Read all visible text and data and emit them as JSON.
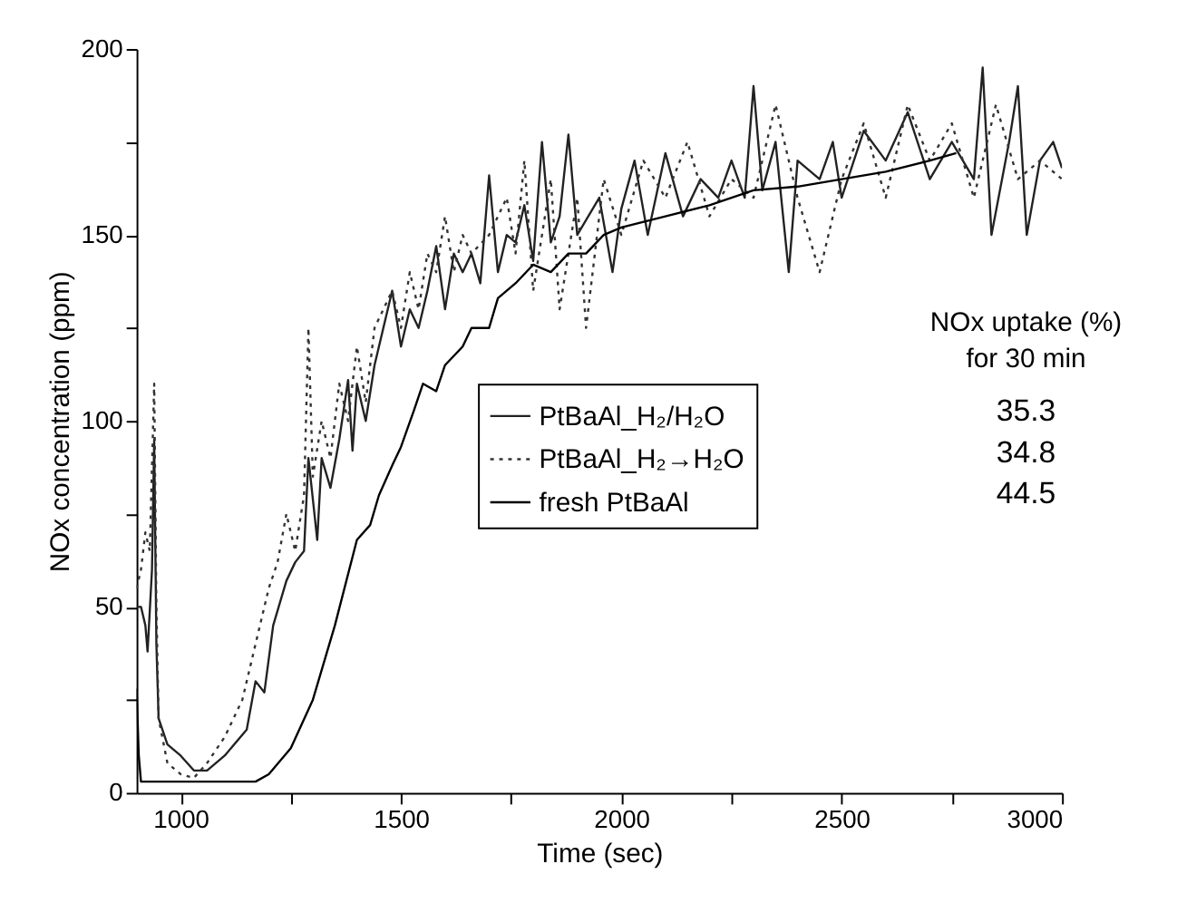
{
  "chart_data": {
    "type": "line",
    "xlabel": "Time (sec)",
    "ylabel": "NOx concentration (ppm)",
    "xlim": [
      900,
      3000
    ],
    "xticks": [
      1000,
      {
        "value": 1250,
        "label": null
      },
      1500,
      {
        "value": 1750,
        "label": null
      },
      2000,
      {
        "value": 2250,
        "label": null
      },
      2500,
      {
        "value": 2750,
        "label": null
      },
      3000
    ],
    "ylim": [
      0,
      200
    ],
    "yticks": [
      0,
      {
        "value": 25,
        "label": null
      },
      50,
      {
        "value": 75,
        "label": null
      },
      100,
      {
        "value": 125,
        "label": null
      },
      150,
      {
        "value": 175,
        "label": null
      },
      200
    ],
    "grid": false,
    "legend": "right",
    "marker": "none",
    "annotations": [
      "NOx uptake (%)",
      "for 30 min",
      "35.3",
      "34.8",
      "44.5"
    ],
    "series": [
      {
        "name": "PtBaAl_H₂/H₂O",
        "color": "#222222",
        "line_style": "solid",
        "x": [
          900,
          910,
          920,
          925,
          935,
          940,
          945,
          950,
          970,
          1000,
          1030,
          1060,
          1100,
          1150,
          1170,
          1190,
          1210,
          1240,
          1260,
          1280,
          1290,
          1310,
          1320,
          1340,
          1360,
          1380,
          1390,
          1400,
          1420,
          1440,
          1460,
          1480,
          1500,
          1520,
          1540,
          1560,
          1580,
          1600,
          1620,
          1640,
          1660,
          1680,
          1700,
          1720,
          1740,
          1760,
          1780,
          1800,
          1820,
          1840,
          1860,
          1880,
          1900,
          1950,
          1980,
          2000,
          2030,
          2060,
          2100,
          2140,
          2180,
          2220,
          2250,
          2280,
          2300,
          2320,
          2350,
          2380,
          2400,
          2450,
          2480,
          2500,
          2550,
          2600,
          2650,
          2700,
          2750,
          2800,
          2820,
          2840,
          2880,
          2900,
          2920,
          2950,
          2980,
          3000
        ],
        "values": [
          50,
          50,
          45,
          38,
          60,
          95,
          40,
          20,
          13,
          10,
          6,
          6,
          10,
          17,
          30,
          27,
          45,
          57,
          62,
          65,
          90,
          68,
          90,
          82,
          95,
          111,
          92,
          110,
          100,
          115,
          125,
          135,
          120,
          130,
          125,
          135,
          147,
          130,
          145,
          140,
          145,
          137,
          166,
          140,
          150,
          148,
          158,
          143,
          175,
          148,
          155,
          177,
          150,
          160,
          140,
          157,
          170,
          150,
          172,
          155,
          165,
          160,
          170,
          160,
          190,
          162,
          175,
          140,
          170,
          165,
          175,
          160,
          178,
          170,
          183,
          165,
          175,
          165,
          195,
          150,
          175,
          190,
          150,
          170,
          175,
          168
        ]
      },
      {
        "name": "PtBaAl_H₂→H₂O",
        "color": "#333333",
        "line_style": "dotted",
        "x": [
          900,
          910,
          920,
          930,
          940,
          945,
          950,
          970,
          1000,
          1030,
          1060,
          1100,
          1140,
          1160,
          1180,
          1200,
          1220,
          1240,
          1260,
          1280,
          1290,
          1300,
          1320,
          1340,
          1360,
          1380,
          1400,
          1420,
          1440,
          1460,
          1480,
          1500,
          1520,
          1540,
          1560,
          1580,
          1600,
          1620,
          1640,
          1660,
          1700,
          1740,
          1760,
          1780,
          1800,
          1840,
          1860,
          1900,
          1920,
          1960,
          2000,
          2050,
          2100,
          2150,
          2200,
          2250,
          2300,
          2350,
          2400,
          2450,
          2500,
          2550,
          2600,
          2650,
          2700,
          2750,
          2800,
          2850,
          2900,
          2950,
          3000
        ],
        "values": [
          55,
          60,
          70,
          65,
          110,
          50,
          20,
          8,
          5,
          4,
          8,
          15,
          25,
          35,
          45,
          55,
          62,
          75,
          65,
          80,
          125,
          85,
          100,
          90,
          110,
          100,
          120,
          105,
          125,
          130,
          135,
          125,
          140,
          130,
          145,
          140,
          155,
          140,
          150,
          145,
          150,
          160,
          145,
          170,
          135,
          165,
          130,
          160,
          125,
          165,
          150,
          170,
          160,
          175,
          155,
          165,
          160,
          185,
          160,
          140,
          165,
          180,
          160,
          185,
          170,
          180,
          160,
          185,
          165,
          170,
          165
        ]
      },
      {
        "name": "fresh PtBaAl",
        "color": "#000000",
        "line_style": "solid",
        "x": [
          900,
          905,
          910,
          950,
          1000,
          1100,
          1170,
          1200,
          1250,
          1300,
          1350,
          1400,
          1430,
          1450,
          1480,
          1500,
          1530,
          1550,
          1580,
          1600,
          1640,
          1660,
          1700,
          1720,
          1760,
          1800,
          1840,
          1880,
          1920,
          1960,
          2000,
          2100,
          2200,
          2300,
          2400,
          2500,
          2600,
          2700,
          2760
        ],
        "values": [
          28,
          10,
          3,
          3,
          3,
          3,
          3,
          5,
          12,
          25,
          45,
          68,
          72,
          80,
          88,
          93,
          103,
          110,
          108,
          115,
          120,
          125,
          125,
          133,
          137,
          142,
          140,
          145,
          145,
          150,
          152,
          155,
          158,
          162,
          163,
          165,
          167,
          170,
          172
        ]
      }
    ]
  }
}
